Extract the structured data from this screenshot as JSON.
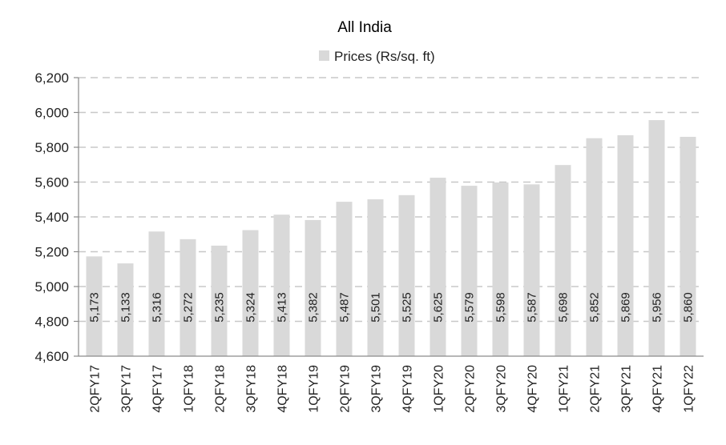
{
  "chart_data": {
    "type": "bar",
    "title": "All India",
    "series": [
      {
        "name": "Prices (Rs/sq. ft)",
        "values": [
          5173,
          5133,
          5316,
          5272,
          5235,
          5324,
          5413,
          5382,
          5487,
          5501,
          5525,
          5625,
          5579,
          5598,
          5587,
          5698,
          5852,
          5869,
          5956,
          5860
        ],
        "labels": [
          "5,173",
          "5,133",
          "5,316",
          "5,272",
          "5,235",
          "5,324",
          "5,413",
          "5,382",
          "5,487",
          "5,501",
          "5,525",
          "5,625",
          "5,579",
          "5,598",
          "5,587",
          "5,698",
          "5,852",
          "5,869",
          "5,956",
          "5,860"
        ]
      }
    ],
    "categories": [
      "2QFY17",
      "3QFY17",
      "4QFY17",
      "1QFY18",
      "2QFY18",
      "3QFY18",
      "4QFY18",
      "1QFY19",
      "2QFY19",
      "3QFY19",
      "4QFY19",
      "1QFY20",
      "2QFY20",
      "3QFY20",
      "4QFY20",
      "1QFY21",
      "2QFY21",
      "3QFY21",
      "4QFY21",
      "1QFY22"
    ],
    "ylim": [
      4600,
      6200
    ],
    "yticks": [
      4600,
      4800,
      5000,
      5200,
      5400,
      5600,
      5800,
      6000,
      6200
    ],
    "ytick_labels": [
      "4,600",
      "4,800",
      "5,000",
      "5,200",
      "5,400",
      "5,600",
      "5,800",
      "6,000",
      "6,200"
    ],
    "grid": true,
    "legend_position": "top-center",
    "colors": {
      "bar": "#d9d9d9",
      "grid": "#c8c8c8",
      "axis": "#8a8a8a"
    }
  }
}
